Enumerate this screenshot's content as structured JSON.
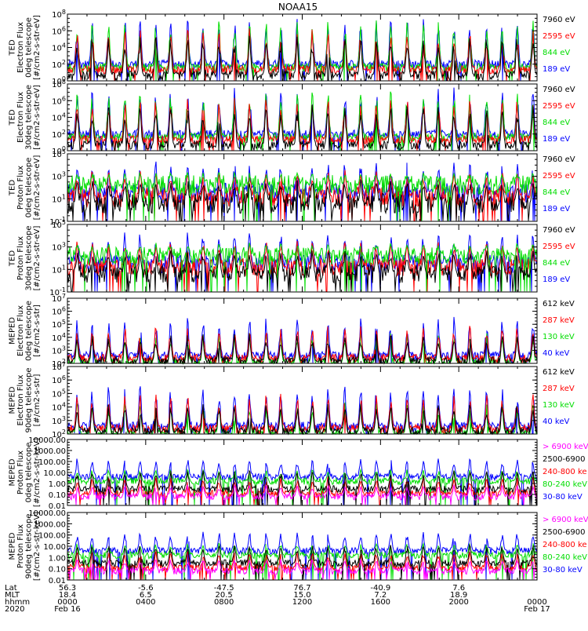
{
  "title": "NOAA15",
  "colors": {
    "black": "#000000",
    "blue": "#0000ff",
    "red": "#ff0000",
    "green": "#00dd00",
    "magenta": "#ff00ff",
    "frame": "#000000"
  },
  "x_axis": {
    "row_labels": [
      "Lat",
      "MLT",
      "hhmm",
      "2020"
    ],
    "ticks": [
      {
        "hhmm": "0000",
        "lat": "56.3",
        "mlt": "18.4",
        "date": "Feb 16"
      },
      {
        "hhmm": "0400",
        "lat": "-5.6",
        "mlt": "6.5",
        "date": ""
      },
      {
        "hhmm": "0800",
        "lat": "-47.5",
        "mlt": "20.5",
        "date": ""
      },
      {
        "hhmm": "1200",
        "lat": "76.7",
        "mlt": "15.0",
        "date": ""
      },
      {
        "hhmm": "1600",
        "lat": "-40.9",
        "mlt": "7.2",
        "date": ""
      },
      {
        "hhmm": "2000",
        "lat": "7.6",
        "mlt": "18.9",
        "date": ""
      },
      {
        "hhmm": "0000",
        "lat": "",
        "mlt": "",
        "date": "Feb 17"
      }
    ],
    "minor_ticks_per_major": 4,
    "range_hours": [
      0,
      24
    ]
  },
  "chart_data": [
    {
      "type": "line",
      "id": "ted-e-0",
      "ylabel": [
        "TED",
        "Electron Flux",
        "0deg telescope",
        "[#/cm2-s-str-eV]"
      ],
      "ylim": [
        1,
        100000000
      ],
      "yscale": "log",
      "ytick_labels": [
        "10^0",
        "10^2",
        "10^4",
        "10^6",
        "10^8"
      ],
      "baseline_log": 1.8,
      "spike_peak_log": 7.0,
      "noise": 0.5,
      "bg_log": 0.3,
      "style": "ted-e",
      "series": [
        {
          "name": "7960 eV",
          "color": "black"
        },
        {
          "name": "2595 eV",
          "color": "red"
        },
        {
          "name": "844 eV",
          "color": "green"
        },
        {
          "name": "189 eV",
          "color": "blue"
        }
      ]
    },
    {
      "type": "line",
      "id": "ted-e-30",
      "ylabel": [
        "TED",
        "Electron Flux",
        "30deg telescope",
        "[#/cm2-s-str-eV]"
      ],
      "ylim": [
        1,
        100000000
      ],
      "yscale": "log",
      "ytick_labels": [
        "10^0",
        "10^2",
        "10^4",
        "10^6",
        "10^8"
      ],
      "baseline_log": 1.8,
      "spike_peak_log": 6.8,
      "noise": 0.5,
      "bg_log": 0.3,
      "style": "ted-e",
      "series": [
        {
          "name": "7960 eV",
          "color": "black"
        },
        {
          "name": "2595 eV",
          "color": "red"
        },
        {
          "name": "844 eV",
          "color": "green"
        },
        {
          "name": "189 eV",
          "color": "blue"
        }
      ]
    },
    {
      "type": "line",
      "id": "ted-p-0",
      "ylabel": [
        "TED",
        "Proton Flux",
        "0deg telescope",
        "[#/cm2-s-str-eV]"
      ],
      "ylim": [
        0.1,
        100000
      ],
      "yscale": "log",
      "ytick_labels": [
        "10^-1",
        "10^1",
        "10^3",
        "10^5"
      ],
      "baseline_log": 1.6,
      "spike_peak_log": 4.2,
      "noise": 0.9,
      "bg_log": 0.2,
      "style": "ted-p",
      "series": [
        {
          "name": "7960 eV",
          "color": "black"
        },
        {
          "name": "2595 eV",
          "color": "red"
        },
        {
          "name": "844 eV",
          "color": "green"
        },
        {
          "name": "189 eV",
          "color": "blue"
        }
      ]
    },
    {
      "type": "line",
      "id": "ted-p-30",
      "ylabel": [
        "TED",
        "Proton Flux",
        "30deg telescope",
        "[#/cm2-s-str-eV]"
      ],
      "ylim": [
        0.1,
        100000
      ],
      "yscale": "log",
      "ytick_labels": [
        "10^-1",
        "10^1",
        "10^3",
        "10^5"
      ],
      "baseline_log": 1.7,
      "spike_peak_log": 4.0,
      "noise": 0.8,
      "bg_log": 0.2,
      "style": "ted-p",
      "series": [
        {
          "name": "7960 eV",
          "color": "black"
        },
        {
          "name": "2595 eV",
          "color": "red"
        },
        {
          "name": "844 eV",
          "color": "green"
        },
        {
          "name": "189 eV",
          "color": "blue"
        }
      ]
    },
    {
      "type": "line",
      "id": "meped-e-0",
      "ylabel": [
        "MEPED",
        "Electron Flux",
        "0deg telescope",
        "[#/cm2-s-str]"
      ],
      "ylim": [
        100,
        10000000
      ],
      "yscale": "log",
      "ytick_labels": [
        "10^2",
        "10^3",
        "10^4",
        "10^5",
        "10^6",
        "10^7"
      ],
      "baseline_log": 2.3,
      "spike_peak_log": 5.5,
      "noise": 0.3,
      "bg_log": 2.1,
      "style": "meped-e",
      "series": [
        {
          "name": "612 keV",
          "color": "black"
        },
        {
          "name": "287 keV",
          "color": "red"
        },
        {
          "name": "130 keV",
          "color": "green"
        },
        {
          "name": "40 keV",
          "color": "blue"
        }
      ]
    },
    {
      "type": "line",
      "id": "meped-e-90",
      "ylabel": [
        "MEPED",
        "Electron Flux",
        "90deg telescope",
        "[#/cm2-s-str]"
      ],
      "ylim": [
        100,
        10000000
      ],
      "yscale": "log",
      "ytick_labels": [
        "10^2",
        "10^3",
        "10^4",
        "10^5",
        "10^6",
        "10^7"
      ],
      "baseline_log": 2.3,
      "spike_peak_log": 5.3,
      "noise": 0.3,
      "bg_log": 2.1,
      "style": "meped-e",
      "series": [
        {
          "name": "612 keV",
          "color": "black"
        },
        {
          "name": "287 keV",
          "color": "red"
        },
        {
          "name": "130 keV",
          "color": "green"
        },
        {
          "name": "40 keV",
          "color": "blue"
        }
      ]
    },
    {
      "type": "line",
      "id": "meped-p-0",
      "ylabel": [
        "MEPED",
        "Proton Flux",
        "0deg telescope",
        "[#/cm2-s-str-keV]"
      ],
      "ylim": [
        0.01,
        10000
      ],
      "yscale": "log",
      "ytick_labels": [
        "0.01",
        "0.10",
        "1.00",
        "10.00",
        "100.00",
        "1000.00",
        "10000.00"
      ],
      "baseline_log": 0.0,
      "spike_peak_log": 2.1,
      "noise": 0.3,
      "bg_log": -1.5,
      "style": "meped-p",
      "series": [
        {
          "name": "> 6900 keV",
          "color": "magenta"
        },
        {
          "name": "2500-6900",
          "color": "black"
        },
        {
          "name": "240-800 ke",
          "color": "red"
        },
        {
          "name": "80-240 keV",
          "color": "green"
        },
        {
          "name": "30-80 keV",
          "color": "blue"
        }
      ]
    },
    {
      "type": "line",
      "id": "meped-p-90",
      "ylabel": [
        "MEPED",
        "Proton Flux",
        "90deg telescope",
        "[#/cm2-s-str-keV]"
      ],
      "ylim": [
        0.01,
        10000
      ],
      "yscale": "log",
      "ytick_labels": [
        "0.01",
        "0.10",
        "1.00",
        "10.00",
        "100.00",
        "1000.00",
        "10000.00"
      ],
      "baseline_log": 0.0,
      "spike_peak_log": 2.2,
      "noise": 0.3,
      "bg_log": -1.5,
      "style": "meped-p",
      "series": [
        {
          "name": "> 6900 keV",
          "color": "magenta"
        },
        {
          "name": "2500-6900",
          "color": "black"
        },
        {
          "name": "240-800 ke",
          "color": "red"
        },
        {
          "name": "80-240 keV",
          "color": "green"
        },
        {
          "name": "30-80 keV",
          "color": "blue"
        }
      ]
    }
  ]
}
